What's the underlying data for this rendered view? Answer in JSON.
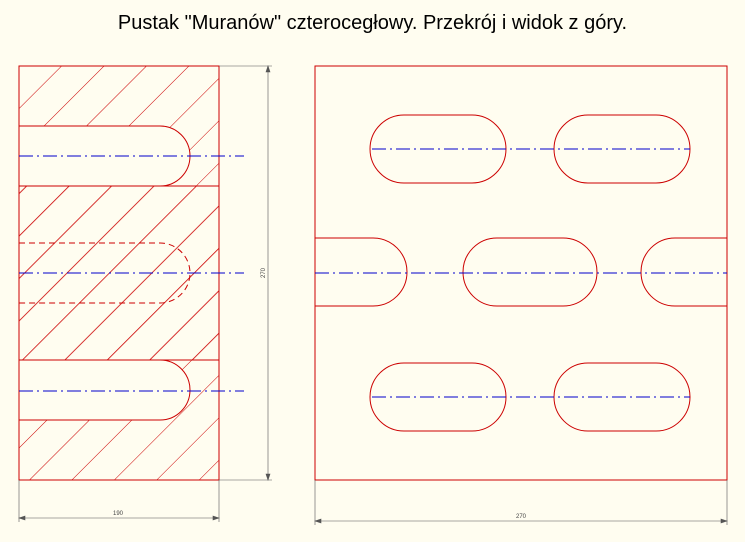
{
  "title": "Pustak \"Muranów\" czterocegłowy. Przekrój i widok z góry.",
  "colors": {
    "background": "#fffdf0",
    "outline": "#cc0000",
    "hatch": "#cc0000",
    "centerline": "#0000cc",
    "dimension": "#555555"
  },
  "dimensions": {
    "section_width": "190",
    "section_height": "270",
    "plan_width": "270"
  },
  "views": {
    "section": "cross-section",
    "plan": "top-view"
  }
}
